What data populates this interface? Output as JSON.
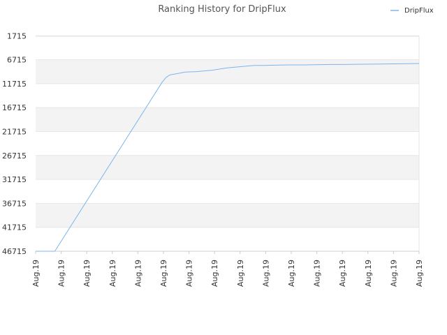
{
  "chart_data": {
    "type": "line",
    "title": "Ranking History for DripFlux",
    "xlabel": "",
    "ylabel": "",
    "y_inverted": true,
    "ylim": [
      46715,
      0
    ],
    "yticks": [
      "1715",
      "6715",
      "11715",
      "16715",
      "21715",
      "26715",
      "31715",
      "36715",
      "41715",
      "46715"
    ],
    "xticks": [
      "Aug.19",
      "Aug.19",
      "Aug.19",
      "Aug.19",
      "Aug.19",
      "Aug.19",
      "Aug.19",
      "Aug.19",
      "Aug.19",
      "Aug.19",
      "Aug.19",
      "Aug.19",
      "Aug.19",
      "Aug.19",
      "Aug.19",
      "Aug.19"
    ],
    "grid": true,
    "legend_position": "top-right",
    "series": [
      {
        "name": "DripFlux",
        "color": "#7cb5ec",
        "x": [
          0.0,
          0.05,
          0.33,
          0.34,
          0.35,
          0.37,
          0.39,
          0.42,
          0.46,
          0.5,
          0.53,
          0.57,
          0.6,
          0.66,
          0.7,
          0.77,
          0.8,
          0.9,
          1.0
        ],
        "y": [
          46715,
          46715,
          11400,
          10400,
          9900,
          9600,
          9300,
          9200,
          8900,
          8400,
          8200,
          7900,
          7900,
          7800,
          7800,
          7700,
          7700,
          7600,
          7500
        ]
      }
    ]
  }
}
